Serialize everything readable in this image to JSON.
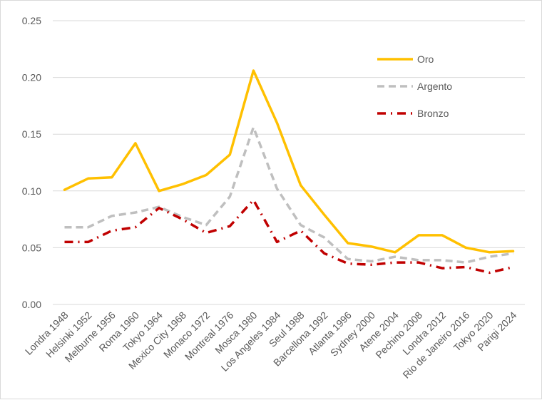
{
  "chart_data": {
    "type": "line",
    "categories": [
      "Londra 1948",
      "Helsinki 1952",
      "Melburne 1956",
      "Roma 1960",
      "Tokyo 1964",
      "Mexico City 1968",
      "Monaco 1972",
      "Montreal 1976",
      "Mosca 1980",
      "Los Angeles 1984",
      "Seul 1988",
      "Barcellona 1992",
      "Atlanta 1996",
      "Sydney 2000",
      "Atene 2004",
      "Pechino 2008",
      "Londra 2012",
      "Rio de Janeiro 2016",
      "Tokyo 2020",
      "Parigi 2024"
    ],
    "series": [
      {
        "name": "Oro",
        "color": "#ffc000",
        "dash": "solid",
        "values": [
          0.101,
          0.111,
          0.112,
          0.142,
          0.1,
          0.106,
          0.114,
          0.132,
          0.206,
          0.16,
          0.105,
          0.079,
          0.054,
          0.051,
          0.046,
          0.061,
          0.061,
          0.05,
          0.046,
          0.047
        ]
      },
      {
        "name": "Argento",
        "color": "#bfbfbf",
        "dash": "dash",
        "values": [
          0.068,
          0.068,
          0.078,
          0.081,
          0.086,
          0.077,
          0.07,
          0.095,
          0.156,
          0.102,
          0.07,
          0.059,
          0.04,
          0.038,
          0.042,
          0.039,
          0.039,
          0.037,
          0.042,
          0.045
        ]
      },
      {
        "name": "Bronzo",
        "color": "#c00000",
        "dash": "dashdot",
        "values": [
          0.055,
          0.055,
          0.065,
          0.068,
          0.085,
          0.075,
          0.063,
          0.069,
          0.092,
          0.055,
          0.065,
          0.045,
          0.036,
          0.035,
          0.037,
          0.037,
          0.032,
          0.033,
          0.028,
          0.033
        ]
      }
    ],
    "y_ticks": [
      "0.00",
      "0.05",
      "0.10",
      "0.15",
      "0.20",
      "0.25"
    ],
    "ylim": [
      0,
      0.25
    ],
    "grid": true,
    "legend_position": "top-right",
    "title": "",
    "xlabel": "",
    "ylabel": ""
  }
}
